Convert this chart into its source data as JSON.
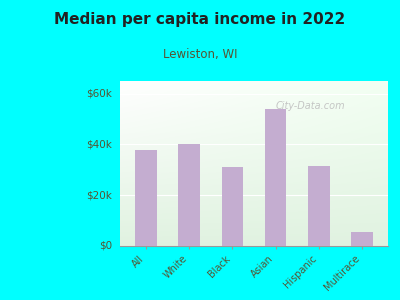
{
  "title": "Median per capita income in 2022",
  "subtitle": "Lewiston, WI",
  "categories": [
    "All",
    "White",
    "Black",
    "Asian",
    "Hispanic",
    "Multirace"
  ],
  "values": [
    38000,
    40000,
    31000,
    54000,
    31500,
    5500
  ],
  "bar_color": "#c4add0",
  "background_outer": "#00FFFF",
  "title_color": "#222222",
  "subtitle_color": "#555533",
  "tick_color": "#555533",
  "watermark": "City-Data.com",
  "ylim": [
    0,
    65000
  ],
  "yticks": [
    0,
    20000,
    40000,
    60000
  ],
  "ytick_labels": [
    "$0",
    "$20k",
    "$40k",
    "$60k"
  ]
}
